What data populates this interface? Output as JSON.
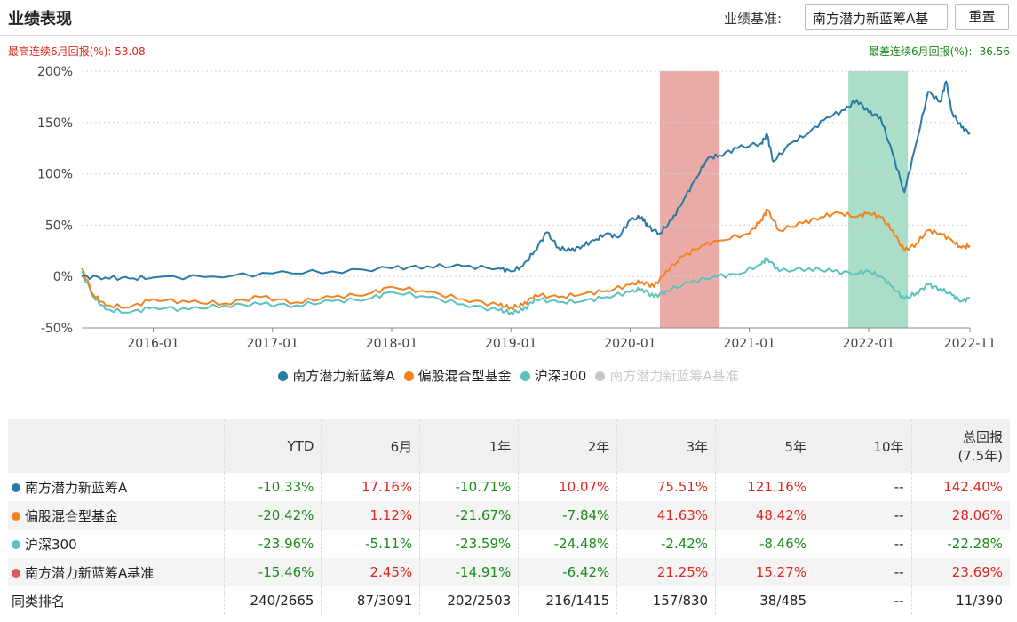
{
  "header": {
    "title": "业绩表现",
    "benchmark_label": "业绩基准:",
    "benchmark_value": "南方潜力新蓝筹A基",
    "reset_label": "重置"
  },
  "max_return": "最高连续6月回报(%): 53.08",
  "min_return": "最差连续6月回报(%): -36.56",
  "colors": {
    "fund": "#2a7aa8",
    "peer": "#f58220",
    "hs300": "#5bc2bf",
    "bench": "#e05a5a",
    "bench_disabled": "#c8c8c8",
    "best_band": "#e38f8a",
    "worst_band": "#8fd3b5"
  },
  "chart_data": {
    "type": "line",
    "x_ticks": [
      "2016-01",
      "2017-01",
      "2018-01",
      "2019-01",
      "2020-01",
      "2021-01",
      "2022-01",
      "2022-11"
    ],
    "y_ticks": [
      "200%",
      "150%",
      "100%",
      "50%",
      "0%",
      "-50%"
    ],
    "ylim": [
      -50,
      200
    ],
    "x_range": [
      2015.4,
      2022.85
    ],
    "best_period": [
      2020.25,
      2020.75
    ],
    "worst_period": [
      2021.83,
      2022.33
    ],
    "series": [
      {
        "name": "南方潜力新蓝筹A",
        "key": "fund",
        "points": [
          [
            2015.4,
            0
          ],
          [
            2015.6,
            -1
          ],
          [
            2015.8,
            -2
          ],
          [
            2016.0,
            -1
          ],
          [
            2016.5,
            0
          ],
          [
            2017.0,
            3
          ],
          [
            2017.5,
            5
          ],
          [
            2018.0,
            8
          ],
          [
            2018.3,
            10
          ],
          [
            2018.6,
            10
          ],
          [
            2018.9,
            8
          ],
          [
            2019.0,
            5
          ],
          [
            2019.1,
            10
          ],
          [
            2019.2,
            25
          ],
          [
            2019.3,
            43
          ],
          [
            2019.4,
            28
          ],
          [
            2019.5,
            25
          ],
          [
            2019.6,
            30
          ],
          [
            2019.7,
            35
          ],
          [
            2019.8,
            42
          ],
          [
            2019.9,
            38
          ],
          [
            2020.0,
            55
          ],
          [
            2020.1,
            58
          ],
          [
            2020.15,
            48
          ],
          [
            2020.25,
            42
          ],
          [
            2020.35,
            55
          ],
          [
            2020.45,
            75
          ],
          [
            2020.55,
            95
          ],
          [
            2020.65,
            115
          ],
          [
            2020.75,
            118
          ],
          [
            2020.9,
            125
          ],
          [
            2021.1,
            130
          ],
          [
            2021.15,
            138
          ],
          [
            2021.2,
            112
          ],
          [
            2021.35,
            130
          ],
          [
            2021.5,
            140
          ],
          [
            2021.65,
            155
          ],
          [
            2021.8,
            162
          ],
          [
            2021.9,
            172
          ],
          [
            2022.0,
            160
          ],
          [
            2022.1,
            155
          ],
          [
            2022.2,
            120
          ],
          [
            2022.3,
            82
          ],
          [
            2022.4,
            130
          ],
          [
            2022.5,
            180
          ],
          [
            2022.6,
            170
          ],
          [
            2022.65,
            190
          ],
          [
            2022.7,
            160
          ],
          [
            2022.78,
            145
          ],
          [
            2022.85,
            140
          ]
        ]
      },
      {
        "name": "偏股混合型基金",
        "key": "peer",
        "points": [
          [
            2015.4,
            8
          ],
          [
            2015.5,
            -18
          ],
          [
            2015.6,
            -28
          ],
          [
            2015.8,
            -30
          ],
          [
            2016.0,
            -22
          ],
          [
            2016.3,
            -25
          ],
          [
            2016.6,
            -26
          ],
          [
            2016.9,
            -20
          ],
          [
            2017.2,
            -25
          ],
          [
            2017.5,
            -20
          ],
          [
            2017.8,
            -17
          ],
          [
            2018.0,
            -10
          ],
          [
            2018.3,
            -15
          ],
          [
            2018.6,
            -22
          ],
          [
            2018.9,
            -28
          ],
          [
            2019.0,
            -30
          ],
          [
            2019.1,
            -28
          ],
          [
            2019.2,
            -18
          ],
          [
            2019.4,
            -20
          ],
          [
            2019.6,
            -17
          ],
          [
            2019.8,
            -14
          ],
          [
            2020.0,
            -8
          ],
          [
            2020.1,
            -5
          ],
          [
            2020.2,
            -10
          ],
          [
            2020.3,
            5
          ],
          [
            2020.45,
            20
          ],
          [
            2020.6,
            30
          ],
          [
            2020.75,
            35
          ],
          [
            2021.0,
            42
          ],
          [
            2021.1,
            55
          ],
          [
            2021.15,
            65
          ],
          [
            2021.25,
            45
          ],
          [
            2021.45,
            52
          ],
          [
            2021.6,
            58
          ],
          [
            2021.75,
            62
          ],
          [
            2021.9,
            58
          ],
          [
            2022.0,
            62
          ],
          [
            2022.1,
            58
          ],
          [
            2022.2,
            45
          ],
          [
            2022.3,
            25
          ],
          [
            2022.4,
            32
          ],
          [
            2022.5,
            45
          ],
          [
            2022.6,
            42
          ],
          [
            2022.7,
            35
          ],
          [
            2022.78,
            28
          ],
          [
            2022.85,
            30
          ]
        ]
      },
      {
        "name": "沪深300",
        "key": "hs300",
        "points": [
          [
            2015.4,
            5
          ],
          [
            2015.5,
            -20
          ],
          [
            2015.6,
            -32
          ],
          [
            2015.8,
            -35
          ],
          [
            2016.0,
            -30
          ],
          [
            2016.3,
            -32
          ],
          [
            2016.6,
            -28
          ],
          [
            2016.9,
            -27
          ],
          [
            2017.2,
            -28
          ],
          [
            2017.5,
            -24
          ],
          [
            2017.8,
            -22
          ],
          [
            2018.0,
            -15
          ],
          [
            2018.3,
            -20
          ],
          [
            2018.6,
            -27
          ],
          [
            2018.9,
            -33
          ],
          [
            2019.0,
            -35
          ],
          [
            2019.1,
            -33
          ],
          [
            2019.2,
            -22
          ],
          [
            2019.4,
            -25
          ],
          [
            2019.6,
            -24
          ],
          [
            2019.8,
            -20
          ],
          [
            2020.0,
            -15
          ],
          [
            2020.1,
            -12
          ],
          [
            2020.2,
            -20
          ],
          [
            2020.3,
            -14
          ],
          [
            2020.5,
            -6
          ],
          [
            2020.7,
            0
          ],
          [
            2020.9,
            2
          ],
          [
            2021.1,
            12
          ],
          [
            2021.15,
            18
          ],
          [
            2021.25,
            5
          ],
          [
            2021.5,
            8
          ],
          [
            2021.7,
            5
          ],
          [
            2021.9,
            3
          ],
          [
            2022.0,
            5
          ],
          [
            2022.1,
            0
          ],
          [
            2022.2,
            -10
          ],
          [
            2022.3,
            -22
          ],
          [
            2022.4,
            -16
          ],
          [
            2022.5,
            -8
          ],
          [
            2022.6,
            -12
          ],
          [
            2022.7,
            -18
          ],
          [
            2022.78,
            -24
          ],
          [
            2022.85,
            -21
          ]
        ]
      }
    ]
  },
  "legend": [
    {
      "label": "南方潜力新蓝筹A",
      "key": "fund"
    },
    {
      "label": "偏股混合型基金",
      "key": "peer"
    },
    {
      "label": "沪深300",
      "key": "hs300"
    },
    {
      "label": "南方潜力新蓝筹A基准",
      "key": "bench_disabled"
    }
  ],
  "table": {
    "headers": [
      "",
      "YTD",
      "6月",
      "1年",
      "2年",
      "3年",
      "5年",
      "10年",
      "总回报\n(7.5年)"
    ],
    "rows": [
      {
        "name": "南方潜力新蓝筹A",
        "key": "fund",
        "values": [
          "-10.33%",
          "17.16%",
          "-10.71%",
          "10.07%",
          "75.51%",
          "121.16%",
          "--",
          "142.40%"
        ]
      },
      {
        "name": "偏股混合型基金",
        "key": "peer",
        "values": [
          "-20.42%",
          "1.12%",
          "-21.67%",
          "-7.84%",
          "41.63%",
          "48.42%",
          "--",
          "28.06%"
        ]
      },
      {
        "name": "沪深300",
        "key": "hs300",
        "values": [
          "-23.96%",
          "-5.11%",
          "-23.59%",
          "-24.48%",
          "-2.42%",
          "-8.46%",
          "--",
          "-22.28%"
        ]
      },
      {
        "name": "南方潜力新蓝筹A基准",
        "key": "bench",
        "values": [
          "-15.46%",
          "2.45%",
          "-14.91%",
          "-6.42%",
          "21.25%",
          "15.27%",
          "--",
          "23.69%"
        ]
      },
      {
        "name": "同类排名",
        "key": "",
        "values": [
          "240/2665",
          "87/3091",
          "202/2503",
          "216/1415",
          "157/830",
          "38/485",
          "--",
          "11/390"
        ]
      }
    ]
  }
}
